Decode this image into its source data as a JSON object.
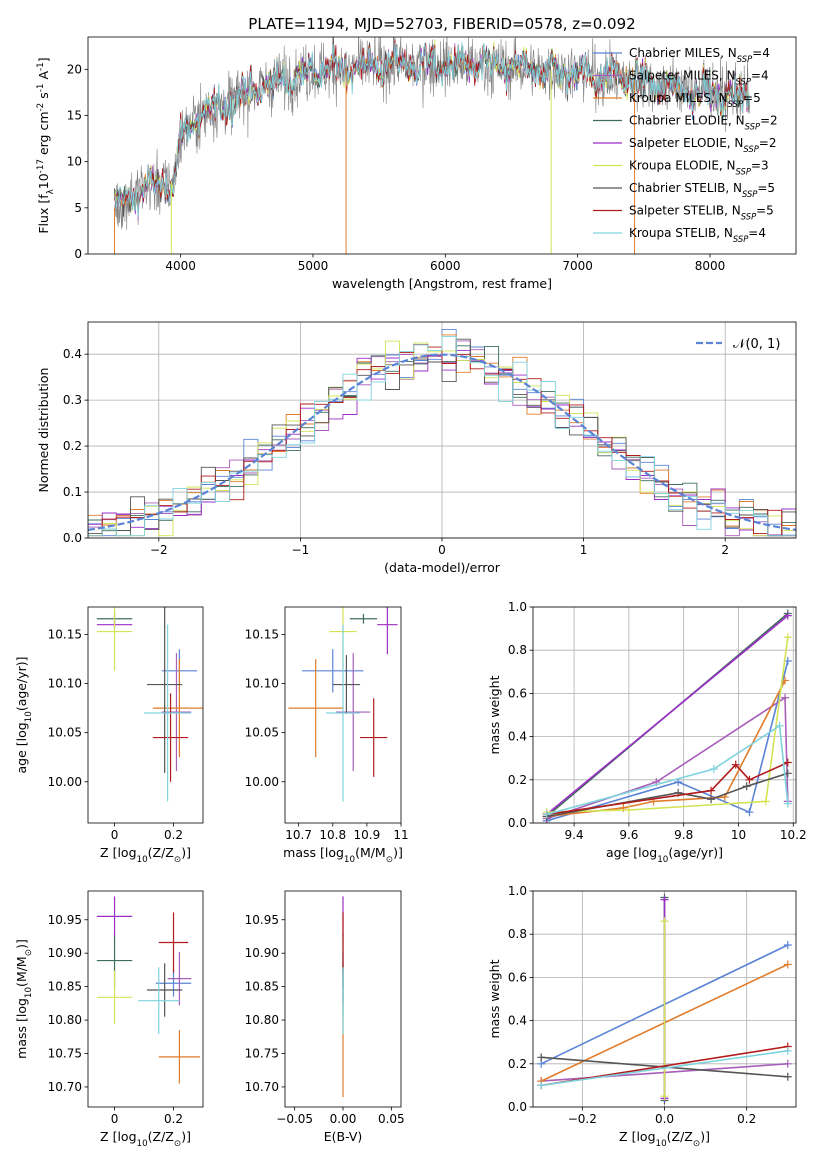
{
  "figure": {
    "series_names": [
      "Chabrier MILES, N$_{SSP}$=4",
      "Salpeter MILES, N$_{SSP}$=4",
      "Kroupa MILES, N$_{SSP}$=5",
      "Chabrier ELODIE, N$_{SSP}$=2",
      "Salpeter ELODIE, N$_{SSP}$=2",
      "Kroupa ELODIE, N$_{SSP}$=3",
      "Chabrier STELIB, N$_{SSP}$=5",
      "Salpeter STELIB, N$_{SSP}$=5",
      "Kroupa STELIB, N$_{SSP}$=4"
    ],
    "colors": [
      "#5b84d6",
      "#a75fb9",
      "#e07d2c",
      "#3f6e5c",
      "#9b2fc6",
      "#d4e355",
      "#555555",
      "#b21c1c",
      "#7fd3de"
    ]
  },
  "chart_data": [
    {
      "id": "spectrum",
      "type": "line",
      "title": "PLATE=1194, MJD=52703, FIBERID=0578, z=0.092",
      "xlabel": "wavelength [Angstrom, rest frame]",
      "ylabel": "Flux [f$_\\lambda$10$^{-17}$ erg cm$^{-2}$ s$^{-1}$ A$^{-1}$]",
      "xlim": [
        3300,
        8650
      ],
      "ylim": [
        0,
        23.5
      ],
      "xticks": [
        4000,
        5000,
        6000,
        7000,
        8000
      ],
      "yticks": [
        0,
        5,
        10,
        15,
        20
      ],
      "grid": false,
      "legend": "right",
      "legend_labels": [
        [
          "Chabrier MILES, N",
          "SSP",
          "=4"
        ],
        [
          "Salpeter MILES, N",
          "SSP",
          "=4"
        ],
        [
          "Kroupa MILES, N",
          "SSP",
          "=5"
        ],
        [
          "Chabrier ELODIE, N",
          "SSP",
          "=2"
        ],
        [
          "Salpeter ELODIE, N",
          "SSP",
          "=2"
        ],
        [
          "Kroupa ELODIE, N",
          "SSP",
          "=3"
        ],
        [
          "Chabrier STELIB, N",
          "SSP",
          "=5"
        ],
        [
          "Salpeter STELIB, N",
          "SSP",
          "=5"
        ],
        [
          "Kroupa STELIB, N",
          "SSP",
          "=4"
        ]
      ],
      "continuum": {
        "x": [
          3500,
          3700,
          3850,
          3950,
          4000,
          4100,
          4300,
          4500,
          4800,
          5000,
          5300,
          5600,
          6000,
          6500,
          7000,
          7500,
          8000,
          8300
        ],
        "y": [
          5.0,
          7.0,
          7.5,
          8.0,
          12.5,
          14.5,
          16.0,
          17.5,
          19.0,
          19.8,
          20.3,
          20.5,
          20.5,
          20.2,
          19.6,
          18.6,
          17.5,
          17.0
        ]
      },
      "wavelength_range": [
        3500,
        8300
      ],
      "edge_spikes": [
        {
          "series": 2,
          "x": 3500
        },
        {
          "series": 5,
          "x": 3930
        },
        {
          "series": 2,
          "x": 5250
        },
        {
          "series": 5,
          "x": 6800
        },
        {
          "series": 2,
          "x": 7430
        }
      ]
    },
    {
      "id": "residuals",
      "type": "histogram",
      "xlabel": "(data-model)/error",
      "ylabel": "Normed distribution",
      "xlim": [
        -2.5,
        2.5
      ],
      "ylim": [
        0,
        0.47
      ],
      "xticks": [
        -2,
        -1,
        0,
        1,
        2
      ],
      "xtick_labels": [
        "−2",
        "−1",
        "0",
        "1",
        "2"
      ],
      "yticks": [
        0.0,
        0.1,
        0.2,
        0.3,
        0.4
      ],
      "grid": true,
      "bin_width": 0.1,
      "reference_curve": {
        "label": "$\\mathcal{N}(0,1)$",
        "legend_text": "𝒩(0, 1)",
        "mu": 0,
        "sigma": 1,
        "style": "dashed",
        "color": "#5b84d6"
      },
      "legend": "top-right"
    },
    {
      "id": "age_vs_Z",
      "type": "errorbar",
      "xlabel": "Z [log$_{10}$(Z/Z$_\\odot$)]",
      "ylabel": "age [log$_{10}$(age/yr)]",
      "xlim": [
        -0.09,
        0.3
      ],
      "ylim": [
        9.958,
        10.178
      ],
      "xticks": [
        0.0,
        0.2
      ],
      "yticks": [
        10.0,
        10.05,
        10.1,
        10.15
      ],
      "points": [
        {
          "series": 0,
          "x": 0.22,
          "y": 10.113,
          "xerr": 0.06,
          "yerr": 0.022
        },
        {
          "series": 1,
          "x": 0.21,
          "y": 10.071,
          "xerr": 0.05,
          "yerr": 0.06
        },
        {
          "series": 2,
          "x": 0.22,
          "y": 10.075,
          "xerr": 0.09,
          "yerr": 0.05
        },
        {
          "series": 3,
          "x": 0.0,
          "y": 10.166,
          "xerr": 0.06,
          "yerr": 0.005
        },
        {
          "series": 4,
          "x": 0.0,
          "y": 10.16,
          "xerr": 0.06,
          "yerr": 0.005
        },
        {
          "series": 5,
          "x": 0.0,
          "y": 10.153,
          "xerr": 0.06,
          "yerr": 0.04
        },
        {
          "series": 6,
          "x": 0.17,
          "y": 10.099,
          "xerr": 0.06,
          "yerr": 0.09
        },
        {
          "series": 7,
          "x": 0.19,
          "y": 10.045,
          "xerr": 0.06,
          "yerr": 0.045
        },
        {
          "series": 8,
          "x": 0.18,
          "y": 10.07,
          "xerr": 0.08,
          "yerr": 0.09
        }
      ]
    },
    {
      "id": "age_vs_mass",
      "type": "errorbar",
      "xlabel": "mass [log$_{10}$(M/M$_\\odot$)]",
      "ylabel": "",
      "xlim": [
        10.66,
        11.0
      ],
      "ylim": [
        9.958,
        10.178
      ],
      "xticks": [
        10.7,
        10.8,
        10.9,
        11.0
      ],
      "yticks": [
        10.0,
        10.05,
        10.1,
        10.15
      ],
      "points": [
        {
          "series": 0,
          "x": 10.8,
          "y": 10.113,
          "xerr": 0.09,
          "yerr": 0.022
        },
        {
          "series": 1,
          "x": 10.86,
          "y": 10.071,
          "xerr": 0.05,
          "yerr": 0.06
        },
        {
          "series": 2,
          "x": 10.75,
          "y": 10.075,
          "xerr": 0.08,
          "yerr": 0.05
        },
        {
          "series": 3,
          "x": 10.89,
          "y": 10.166,
          "xerr": 0.04,
          "yerr": 0.005
        },
        {
          "series": 4,
          "x": 10.96,
          "y": 10.16,
          "xerr": 0.03,
          "yerr": 0.03
        },
        {
          "series": 5,
          "x": 10.83,
          "y": 10.153,
          "xerr": 0.04,
          "yerr": 0.04
        },
        {
          "series": 6,
          "x": 10.84,
          "y": 10.099,
          "xerr": 0.04,
          "yerr": 0.03
        },
        {
          "series": 7,
          "x": 10.92,
          "y": 10.045,
          "xerr": 0.04,
          "yerr": 0.04
        },
        {
          "series": 8,
          "x": 10.83,
          "y": 10.07,
          "xerr": 0.05,
          "yerr": 0.09
        }
      ]
    },
    {
      "id": "mass_weight_vs_age",
      "type": "line",
      "xlabel": "age [log$_{10}$(age/yr)]",
      "ylabel": "mass weight",
      "xlim": [
        9.25,
        10.21
      ],
      "ylim": [
        0.0,
        1.0
      ],
      "xticks": [
        9.4,
        9.6,
        9.8,
        10.0,
        10.2
      ],
      "yticks": [
        0.0,
        0.2,
        0.4,
        0.6,
        0.8,
        1.0
      ],
      "grid": true,
      "series": [
        {
          "series": 0,
          "x": [
            9.3,
            9.78,
            10.04,
            10.18
          ],
          "y": [
            0.01,
            0.19,
            0.05,
            0.75
          ]
        },
        {
          "series": 1,
          "x": [
            9.3,
            9.7,
            10.17,
            10.18
          ],
          "y": [
            0.02,
            0.19,
            0.58,
            0.1
          ]
        },
        {
          "series": 2,
          "x": [
            9.3,
            9.58,
            9.69,
            9.95,
            10.17
          ],
          "y": [
            0.03,
            0.07,
            0.1,
            0.12,
            0.66
          ]
        },
        {
          "series": 3,
          "x": [
            9.3,
            10.18
          ],
          "y": [
            0.03,
            0.97
          ]
        },
        {
          "series": 4,
          "x": [
            9.3,
            10.18
          ],
          "y": [
            0.04,
            0.96
          ]
        },
        {
          "series": 5,
          "x": [
            9.3,
            9.6,
            10.1,
            10.18
          ],
          "y": [
            0.05,
            0.06,
            0.1,
            0.86
          ]
        },
        {
          "series": 6,
          "x": [
            9.3,
            9.78,
            9.9,
            10.03,
            10.18
          ],
          "y": [
            0.03,
            0.14,
            0.11,
            0.17,
            0.23
          ]
        },
        {
          "series": 7,
          "x": [
            9.3,
            9.9,
            9.99,
            10.04,
            10.18
          ],
          "y": [
            0.04,
            0.15,
            0.27,
            0.2,
            0.28
          ]
        },
        {
          "series": 8,
          "x": [
            9.3,
            9.91,
            10.15,
            10.18
          ],
          "y": [
            0.04,
            0.25,
            0.45,
            0.09
          ]
        }
      ]
    },
    {
      "id": "mass_vs_Z",
      "type": "errorbar",
      "xlabel": "Z [log$_{10}$(Z/Z$_\\odot$)]",
      "ylabel": "mass [log$_{10}$(M/M$_\\odot$)]",
      "xlim": [
        -0.09,
        0.3
      ],
      "ylim": [
        10.67,
        10.993
      ],
      "xticks": [
        0.0,
        0.2
      ],
      "yticks": [
        10.7,
        10.75,
        10.8,
        10.85,
        10.9,
        10.95
      ],
      "points": [
        {
          "series": 0,
          "x": 0.2,
          "y": 10.855,
          "xerr": 0.06,
          "yerr": 0.02
        },
        {
          "series": 1,
          "x": 0.22,
          "y": 10.862,
          "xerr": 0.04,
          "yerr": 0.04
        },
        {
          "series": 2,
          "x": 0.22,
          "y": 10.745,
          "xerr": 0.07,
          "yerr": 0.04
        },
        {
          "series": 3,
          "x": 0.0,
          "y": 10.889,
          "xerr": 0.06,
          "yerr": 0.04
        },
        {
          "series": 4,
          "x": 0.0,
          "y": 10.955,
          "xerr": 0.06,
          "yerr": 0.03
        },
        {
          "series": 5,
          "x": 0.0,
          "y": 10.834,
          "xerr": 0.06,
          "yerr": 0.04
        },
        {
          "series": 6,
          "x": 0.17,
          "y": 10.845,
          "xerr": 0.06,
          "yerr": 0.04
        },
        {
          "series": 7,
          "x": 0.2,
          "y": 10.916,
          "xerr": 0.05,
          "yerr": 0.045
        },
        {
          "series": 8,
          "x": 0.15,
          "y": 10.829,
          "xerr": 0.07,
          "yerr": 0.05
        }
      ]
    },
    {
      "id": "mass_vs_ebv",
      "type": "errorbar",
      "xlabel": "E(B-V)",
      "ylabel": "",
      "xlim": [
        -0.06,
        0.06
      ],
      "ylim": [
        10.67,
        10.993
      ],
      "xticks": [
        -0.05,
        0.0,
        0.05
      ],
      "xtick_labels": [
        "−0.05",
        "0.00",
        "0.05"
      ],
      "yticks": [
        10.7,
        10.75,
        10.8,
        10.85,
        10.9,
        10.95
      ],
      "points": [
        {
          "series": 0,
          "x": 0.0,
          "y": 10.855,
          "xerr": 0,
          "yerr": 0.02
        },
        {
          "series": 1,
          "x": 0.0,
          "y": 10.862,
          "xerr": 0,
          "yerr": 0.04
        },
        {
          "series": 2,
          "x": 0.0,
          "y": 10.745,
          "xerr": 0,
          "yerr": 0.06
        },
        {
          "series": 3,
          "x": 0.0,
          "y": 10.889,
          "xerr": 0,
          "yerr": 0.04
        },
        {
          "series": 4,
          "x": 0.0,
          "y": 10.955,
          "xerr": 0,
          "yerr": 0.03
        },
        {
          "series": 5,
          "x": 0.0,
          "y": 10.834,
          "xerr": 0,
          "yerr": 0.04
        },
        {
          "series": 6,
          "x": 0.0,
          "y": 10.845,
          "xerr": 0,
          "yerr": 0.04
        },
        {
          "series": 7,
          "x": 0.0,
          "y": 10.916,
          "xerr": 0,
          "yerr": 0.045
        },
        {
          "series": 8,
          "x": 0.0,
          "y": 10.829,
          "xerr": 0,
          "yerr": 0.05
        }
      ]
    },
    {
      "id": "mass_weight_vs_Z",
      "type": "line",
      "xlabel": "Z [log$_{10}$(Z/Z$_\\odot$)]",
      "ylabel": "mass weight",
      "xlim": [
        -0.32,
        0.32
      ],
      "ylim": [
        0.0,
        1.0
      ],
      "xticks": [
        -0.2,
        0.0,
        0.2
      ],
      "xtick_labels": [
        "−0.2",
        "0.0",
        "0.2"
      ],
      "yticks": [
        0.0,
        0.2,
        0.4,
        0.6,
        0.8,
        1.0
      ],
      "grid": true,
      "series": [
        {
          "series": 0,
          "x": [
            -0.3,
            0.3
          ],
          "y": [
            0.2,
            0.75
          ]
        },
        {
          "series": 1,
          "x": [
            -0.3,
            0.3
          ],
          "y": [
            0.12,
            0.2
          ]
        },
        {
          "series": 2,
          "x": [
            -0.3,
            0.3
          ],
          "y": [
            0.12,
            0.66
          ]
        },
        {
          "series": 3,
          "x": [
            0.0,
            0.0
          ],
          "y": [
            0.03,
            0.97
          ]
        },
        {
          "series": 4,
          "x": [
            0.0,
            0.0
          ],
          "y": [
            0.04,
            0.96
          ]
        },
        {
          "series": 5,
          "x": [
            0.0,
            0.0
          ],
          "y": [
            0.05,
            0.86
          ]
        },
        {
          "series": 6,
          "x": [
            -0.3,
            0.3
          ],
          "y": [
            0.23,
            0.14
          ]
        },
        {
          "series": 7,
          "x": [
            -0.3,
            0.3
          ],
          "y": [
            0.1,
            0.28
          ]
        },
        {
          "series": 8,
          "x": [
            -0.3,
            0.3
          ],
          "y": [
            0.1,
            0.26
          ]
        }
      ]
    }
  ]
}
